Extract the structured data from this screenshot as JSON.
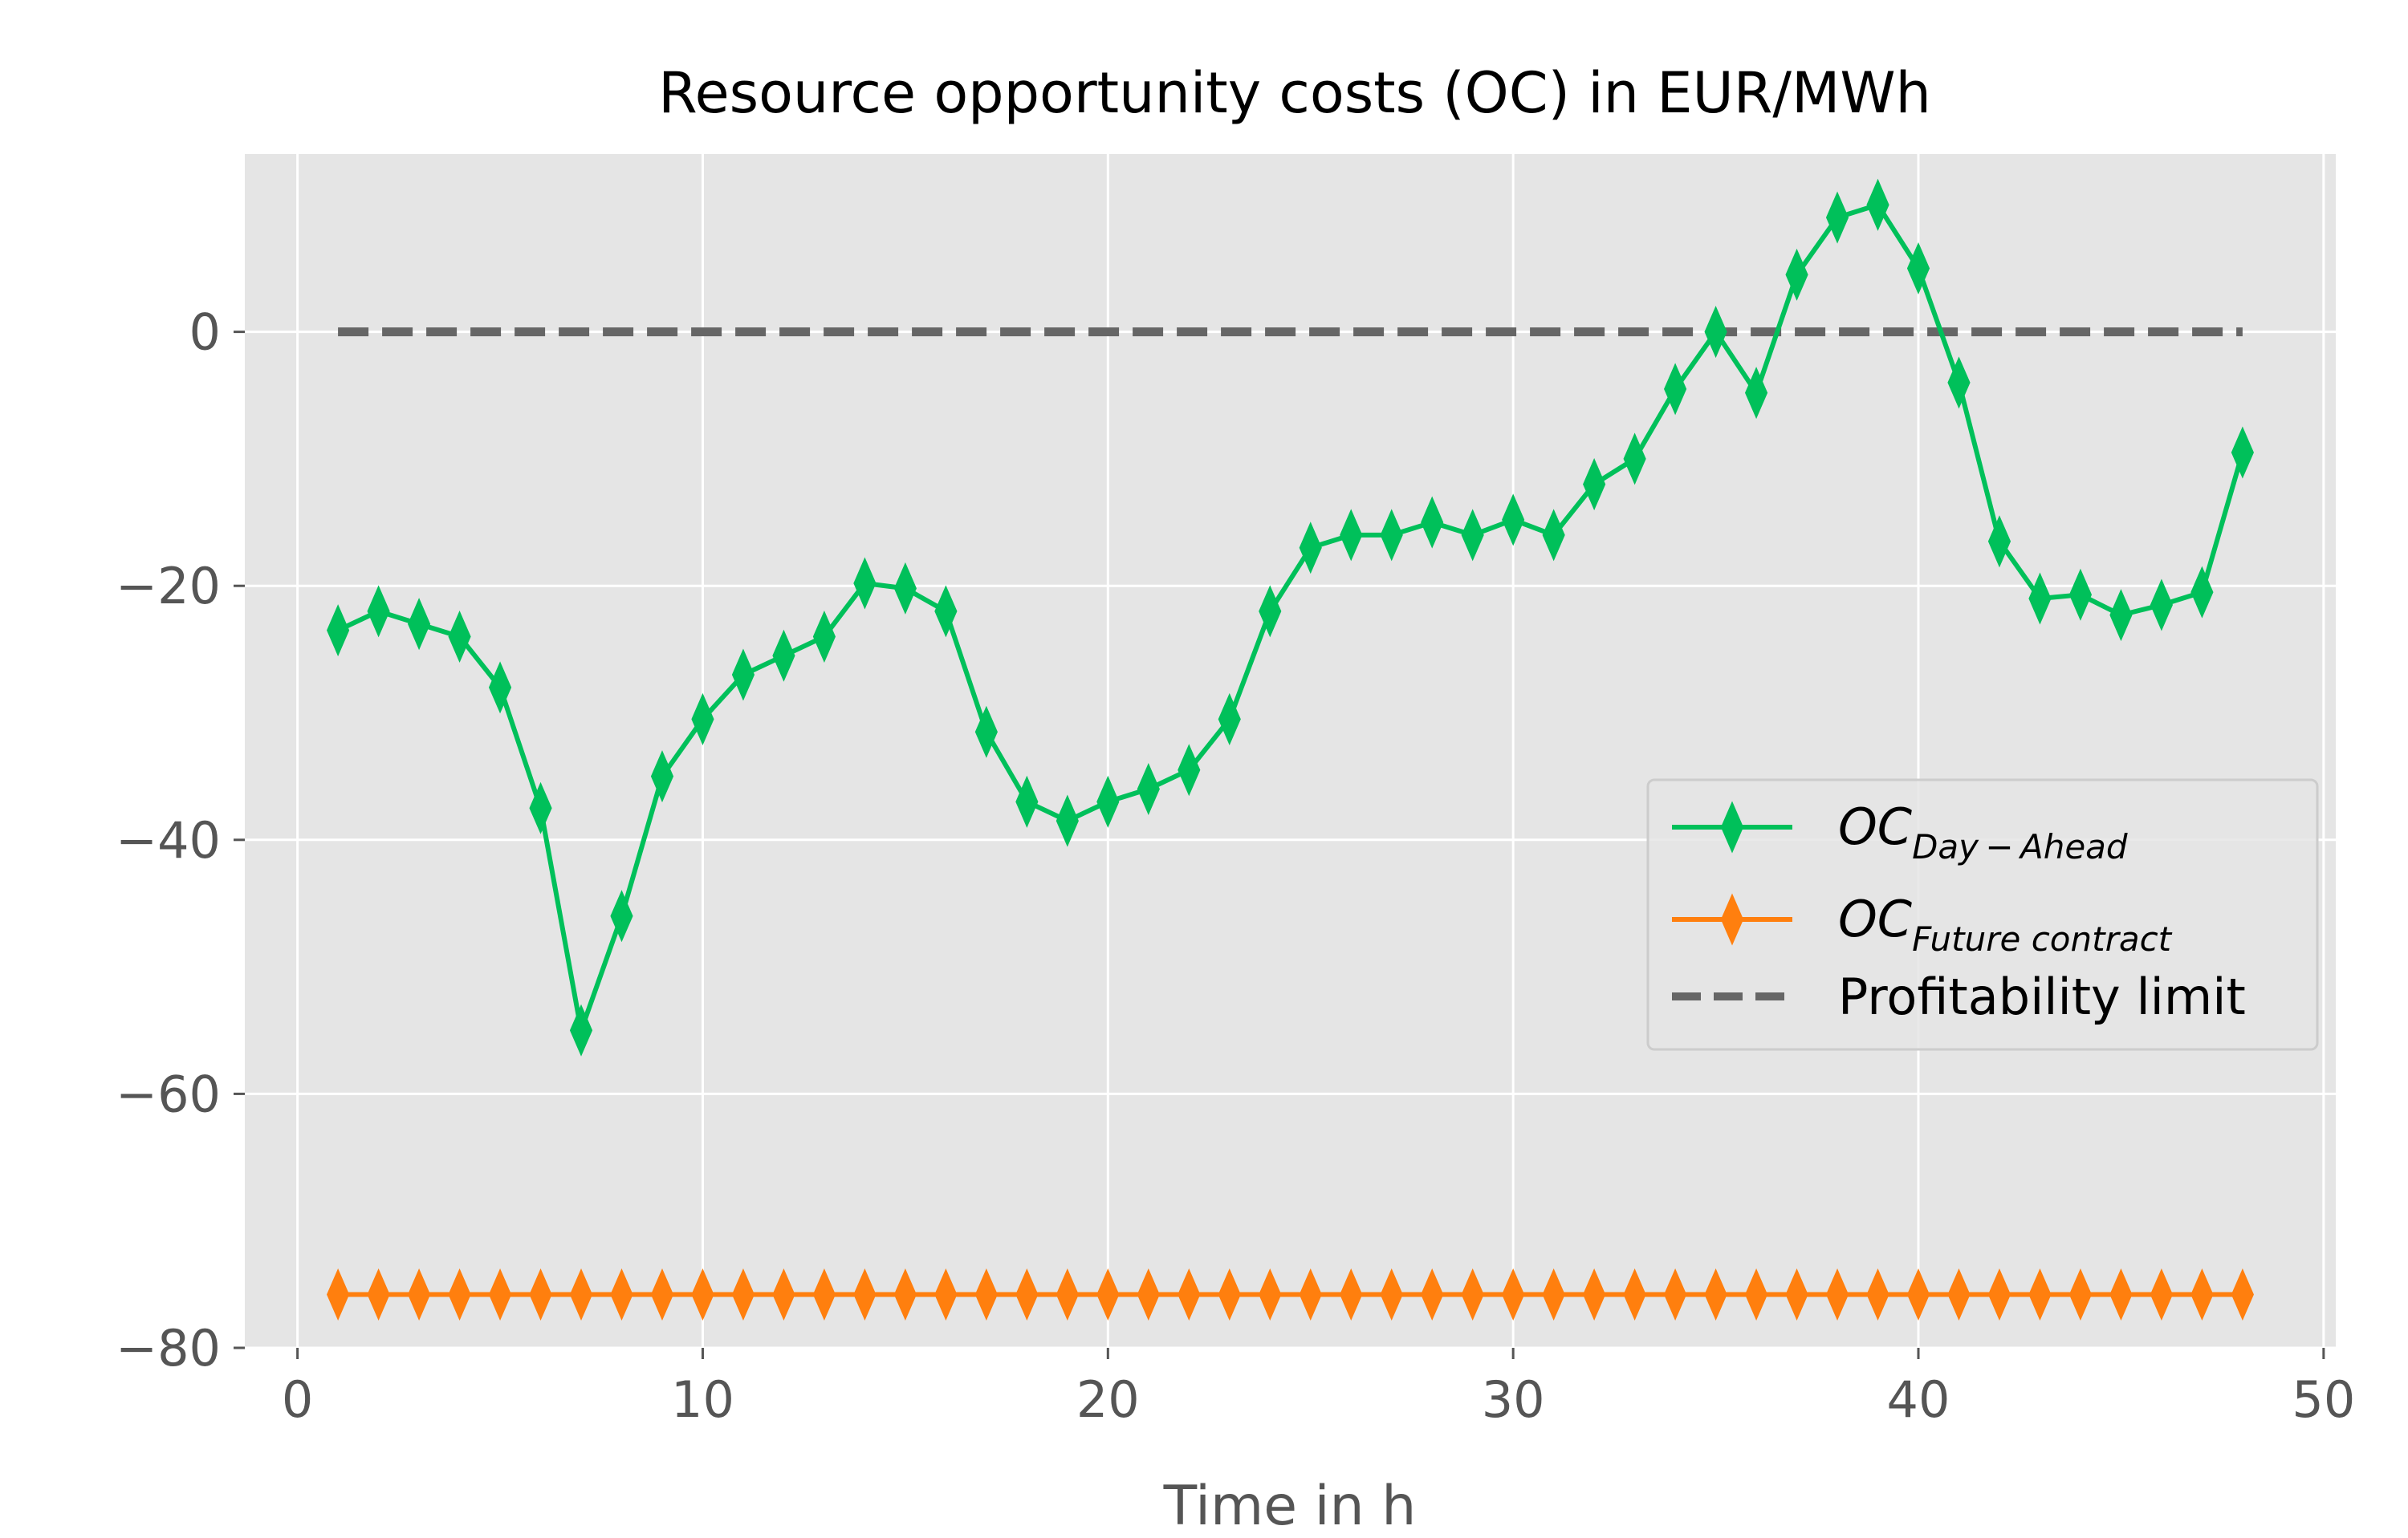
{
  "chart_data": {
    "type": "line",
    "title": "Resource opportunity costs (OC) in EUR/MWh",
    "xlabel": "Time in h",
    "ylabel": "",
    "xlim": [
      -1.3,
      50.3
    ],
    "ylim": [
      -80,
      14
    ],
    "xticks": [
      0,
      10,
      20,
      30,
      40,
      50
    ],
    "yticks": [
      0,
      -20,
      -40,
      -60,
      -80
    ],
    "xtick_labels": [
      "0",
      "10",
      "20",
      "30",
      "40",
      "50"
    ],
    "ytick_labels": [
      "0",
      "−20",
      "−40",
      "−60",
      "−80"
    ],
    "grid": true,
    "background": "#e5e5e5",
    "legend_position": "center-right",
    "series": [
      {
        "name": "OC",
        "name_subscript": "Day − Ahead",
        "color": "#00c05a",
        "marker": "thin-diamond",
        "x": [
          1,
          2,
          3,
          4,
          5,
          6,
          7,
          8,
          9,
          10,
          11,
          12,
          13,
          14,
          15,
          16,
          17,
          18,
          19,
          20,
          21,
          22,
          23,
          24,
          25,
          26,
          27,
          28,
          29,
          30,
          31,
          32,
          33,
          34,
          35,
          36,
          37,
          38,
          39,
          40,
          41,
          42,
          43,
          44,
          45,
          46,
          47,
          48
        ],
        "values": [
          -23.5,
          -22,
          -23,
          -24,
          -28,
          -37.5,
          -55,
          -46,
          -35,
          -30.5,
          -27,
          -25.5,
          -24,
          -19.8,
          -20.2,
          -22,
          -31.5,
          -37,
          -38.5,
          -37,
          -36,
          -34.5,
          -30.5,
          -22,
          -17,
          -16,
          -16,
          -15,
          -16,
          -14.8,
          -16,
          -12,
          -10,
          -4.5,
          0,
          -4.8,
          4.5,
          9,
          10,
          5,
          -4,
          -16.5,
          -21,
          -20.7,
          -22.3,
          -21.5,
          -20.5,
          -9.5
        ]
      },
      {
        "name": "OC",
        "name_subscript": "Future contract",
        "color": "#ff7f0e",
        "marker": "thin-diamond",
        "x": [
          1,
          2,
          3,
          4,
          5,
          6,
          7,
          8,
          9,
          10,
          11,
          12,
          13,
          14,
          15,
          16,
          17,
          18,
          19,
          20,
          21,
          22,
          23,
          24,
          25,
          26,
          27,
          28,
          29,
          30,
          31,
          32,
          33,
          34,
          35,
          36,
          37,
          38,
          39,
          40,
          41,
          42,
          43,
          44,
          45,
          46,
          47,
          48
        ],
        "values": [
          -75.8,
          -75.8,
          -75.8,
          -75.8,
          -75.8,
          -75.8,
          -75.8,
          -75.8,
          -75.8,
          -75.8,
          -75.8,
          -75.8,
          -75.8,
          -75.8,
          -75.8,
          -75.8,
          -75.8,
          -75.8,
          -75.8,
          -75.8,
          -75.8,
          -75.8,
          -75.8,
          -75.8,
          -75.8,
          -75.8,
          -75.8,
          -75.8,
          -75.8,
          -75.8,
          -75.8,
          -75.8,
          -75.8,
          -75.8,
          -75.8,
          -75.8,
          -75.8,
          -75.8,
          -75.8,
          -75.8,
          -75.8,
          -75.8,
          -75.8,
          -75.8,
          -75.8,
          -75.8,
          -75.8,
          -75.8
        ]
      },
      {
        "name": "Profitability limit",
        "color": "#666666",
        "style": "dashed",
        "x": [
          1,
          48
        ],
        "values": [
          0,
          0
        ]
      }
    ]
  }
}
